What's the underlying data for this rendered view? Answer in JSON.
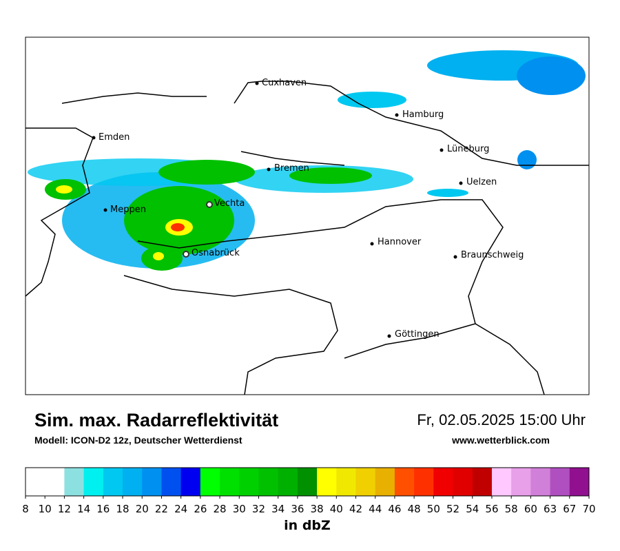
{
  "header": {
    "title": "Sim. max. Radarreflektivität",
    "subtitle": "Modell: ICON-D2 12z, Deutscher Wetterdienst",
    "datetime": "Fr, 02.05.2025 15:00 Uhr",
    "website": "www.wetterblick.com"
  },
  "cities": [
    "Cuxhaven",
    "Emden",
    "Hamburg",
    "Lüneburg",
    "Bremen",
    "Uelzen",
    "Vechta",
    "Meppen",
    "Hannover",
    "Osnabrück",
    "Braunschweig",
    "Göttingen"
  ],
  "colorbar": {
    "ticks": [
      8,
      10,
      12,
      14,
      16,
      18,
      20,
      22,
      24,
      26,
      28,
      30,
      32,
      34,
      36,
      38,
      40,
      42,
      44,
      46,
      48,
      50,
      52,
      54,
      56,
      58,
      60,
      63,
      67,
      70
    ],
    "colors": [
      "#ffffff",
      "#ffffff",
      "#8de0e0",
      "#00f0f0",
      "#00c8f0",
      "#00b0f0",
      "#0090f0",
      "#0050f0",
      "#0000f0",
      "#00ff00",
      "#00e000",
      "#00d000",
      "#00c000",
      "#00b000",
      "#009000",
      "#ffff00",
      "#f0e800",
      "#f0d000",
      "#e8b000",
      "#ff5000",
      "#ff3000",
      "#f00000",
      "#e00000",
      "#c00000",
      "#ffc8ff",
      "#e8a0e8",
      "#d080d8",
      "#b050c0",
      "#901090"
    ],
    "label": "in dbZ"
  }
}
